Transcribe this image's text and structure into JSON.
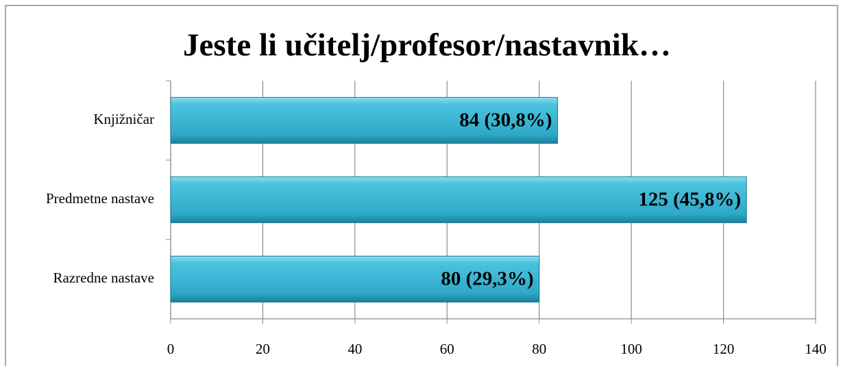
{
  "chart_data": {
    "type": "barh",
    "title": "Jeste li učitelj/profesor/nastavnik…",
    "categories": [
      "Knjižničar",
      "Predmetne nastave",
      "Razredne nastave"
    ],
    "values": [
      84,
      125,
      80
    ],
    "value_labels": [
      "84 (30,8%)",
      "125 (45,8%)",
      "80 (29,3%)"
    ],
    "color": "#3cb8d6",
    "xlim": [
      0,
      140
    ],
    "xticks": [
      0,
      20,
      40,
      60,
      80,
      100,
      120,
      140
    ],
    "grid": true
  }
}
